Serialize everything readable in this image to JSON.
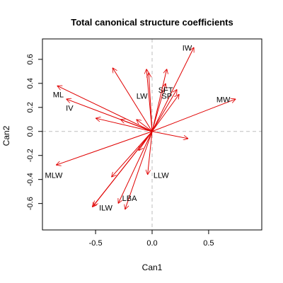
{
  "chart_data": {
    "type": "biplot",
    "title": "Total canonical structure coefficients",
    "xlabel": "Can1",
    "ylabel": "Can2",
    "xlim": [
      -0.97,
      0.97
    ],
    "ylim": [
      -0.82,
      0.77
    ],
    "xticks": [
      -0.5,
      0.0,
      0.5
    ],
    "xtick_labels": [
      "-0.5",
      "0.0",
      "0.5"
    ],
    "yticks": [
      -0.6,
      -0.4,
      -0.2,
      0.0,
      0.2,
      0.4,
      0.6
    ],
    "ytick_labels": [
      "-0.6",
      "-0.4",
      "-0.2",
      "0.0",
      "0.2",
      "0.4",
      "0.6"
    ],
    "reference_lines": {
      "x": 0,
      "y": 0,
      "style": "dashed",
      "color": "#bebebe"
    },
    "arrow_color": "#e00000",
    "vectors": [
      {
        "label": "IW",
        "x": 0.37,
        "y": 0.7,
        "label_x": 0.31,
        "label_y": 0.69
      },
      {
        "label": "MW",
        "x": 0.74,
        "y": 0.27,
        "label_x": 0.63,
        "label_y": 0.26
      },
      {
        "label": "ML",
        "x": -0.84,
        "y": 0.38,
        "label_x": -0.83,
        "label_y": 0.3
      },
      {
        "label": "IV",
        "x": -0.76,
        "y": 0.27,
        "label_x": -0.73,
        "label_y": 0.19
      },
      {
        "label": "LW",
        "x": -0.03,
        "y": 0.49,
        "label_x": -0.09,
        "label_y": 0.29
      },
      {
        "label": "SFT",
        "x": 0.12,
        "y": 0.4,
        "label_x": 0.12,
        "label_y": 0.34
      },
      {
        "label": "SP",
        "x": 0.22,
        "y": 0.35,
        "label_x": 0.13,
        "label_y": 0.29
      },
      {
        "label": "MLW",
        "x": -0.85,
        "y": -0.28,
        "label_x": -0.87,
        "label_y": -0.37
      },
      {
        "label": "LLW",
        "x": -0.04,
        "y": -0.36,
        "label_x": 0.08,
        "label_y": -0.37
      },
      {
        "label": "LBA",
        "x": -0.24,
        "y": -0.65,
        "label_x": -0.2,
        "label_y": -0.56
      },
      {
        "label": "ILW",
        "x": -0.53,
        "y": -0.63,
        "label_x": -0.41,
        "label_y": -0.64
      },
      {
        "label": "",
        "x": -0.35,
        "y": 0.53
      },
      {
        "label": "",
        "x": -0.05,
        "y": 0.52
      },
      {
        "label": "",
        "x": 0.13,
        "y": 0.52
      },
      {
        "label": "",
        "x": 0.24,
        "y": 0.31
      },
      {
        "label": "",
        "x": -0.5,
        "y": 0.11
      },
      {
        "label": "",
        "x": -0.28,
        "y": 0.1
      },
      {
        "label": "",
        "x": -0.14,
        "y": 0.1
      },
      {
        "label": "",
        "x": 0.32,
        "y": -0.06
      },
      {
        "label": "",
        "x": -0.12,
        "y": -0.16
      },
      {
        "label": "",
        "x": -0.36,
        "y": -0.38
      },
      {
        "label": "",
        "x": -0.3,
        "y": -0.6
      },
      {
        "label": "",
        "x": -0.52,
        "y": -0.62
      }
    ]
  }
}
